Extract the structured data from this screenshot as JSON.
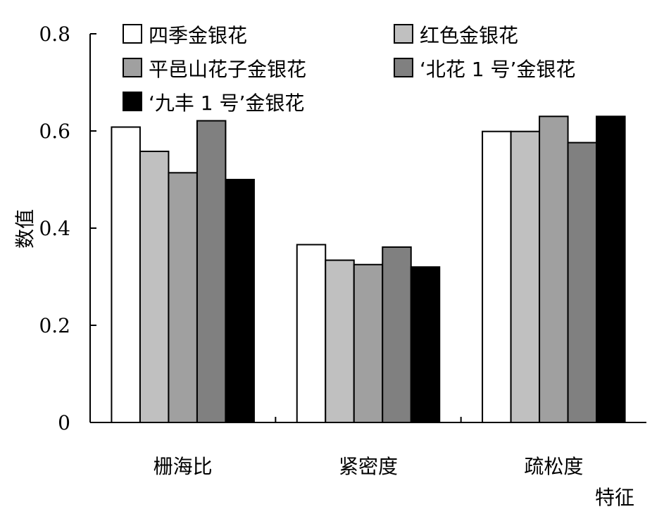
{
  "chart_data": {
    "type": "bar",
    "categories": [
      "栅海比",
      "紧密度",
      "疏松度"
    ],
    "series": [
      {
        "name": "四季金银花",
        "color": "#ffffff",
        "values": [
          0.608,
          0.366,
          0.599
        ]
      },
      {
        "name": "红色金银花",
        "color": "#c0c0c0",
        "values": [
          0.558,
          0.334,
          0.599
        ]
      },
      {
        "name": "平邑山花子金银花",
        "color": "#a0a0a0",
        "values": [
          0.514,
          0.325,
          0.63
        ]
      },
      {
        "name": "‘北花 1 号’金银花",
        "color": "#808080",
        "values": [
          0.621,
          0.361,
          0.576
        ]
      },
      {
        "name": "‘九丰 1 号’金银花",
        "color": "#000000",
        "values": [
          0.5,
          0.32,
          0.63
        ]
      }
    ],
    "ylim": [
      0,
      0.8
    ],
    "yticks": [
      "0",
      "0.2",
      "0.4",
      "0.6",
      "0.8"
    ],
    "xlabel": "特征",
    "ylabel": "数值",
    "legend_position": "top",
    "grid": false
  }
}
